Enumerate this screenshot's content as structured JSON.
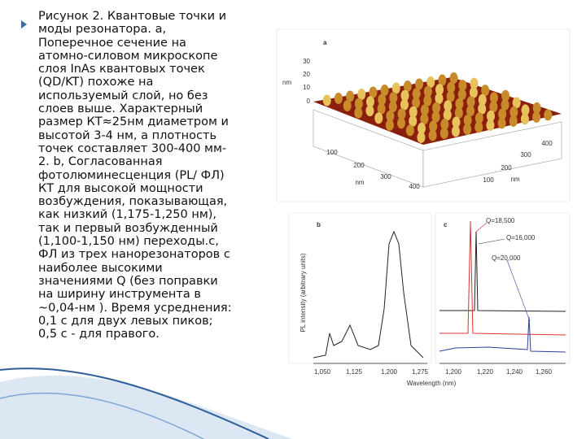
{
  "text": {
    "lines": [
      "Рисунок 2. Квантовые точки и",
      "моды резонатора. a,",
      "Поперечное сечение на",
      "атомно-силовом микроскопе",
      "слоя InAs квантовых точек",
      "(QD/KT) похоже на",
      "используемый слой, но без",
      "слоев выше. Характерный",
      "размер КТ≈25нм диаметром и",
      "высотой 3-4 нм, а плотность",
      "точек составляет 300-400 мм-",
      "2. b, Согласованная",
      "фотолюминесценция (PL/ ФЛ)",
      "КТ для высокой мощности",
      "возбуждения, показывающая,",
      "как низкий (1,175-1,250 нм),",
      "так и первый возбужденный",
      "(1,100-1,150 нм) переходы.c,",
      "ФЛ из трех нанорезонаторов с",
      "наиболее высокими",
      "значениями Q (без поправки",
      "на ширину инструмента в",
      "~0,04-нм ). Время усреднения:",
      "0,1 с для двух левых пиков;",
      "0,5 с - для правого."
    ]
  },
  "figure": {
    "a": {
      "label": "a",
      "z_unit": "nm",
      "z_ticks": [
        "30",
        "20",
        "10",
        "0"
      ],
      "x_unit": "nm",
      "x_ticks": [
        "100",
        "200",
        "300",
        "400"
      ],
      "y_unit": "nm",
      "y_ticks": [
        "400",
        "300",
        "200",
        "100"
      ]
    },
    "b": {
      "label": "b",
      "y_label": "PL intensity (arbitrary units)",
      "x_ticks": [
        "1,050",
        "1,125",
        "1,200",
        "1,275"
      ]
    },
    "c": {
      "label": "c",
      "x_ticks": [
        "1,200",
        "1,220",
        "1,240",
        "1,260"
      ],
      "peaks": [
        "Q=18,500",
        "Q=16,000",
        "Q=20,000"
      ]
    },
    "x_label": "Wavelength (nm)"
  }
}
